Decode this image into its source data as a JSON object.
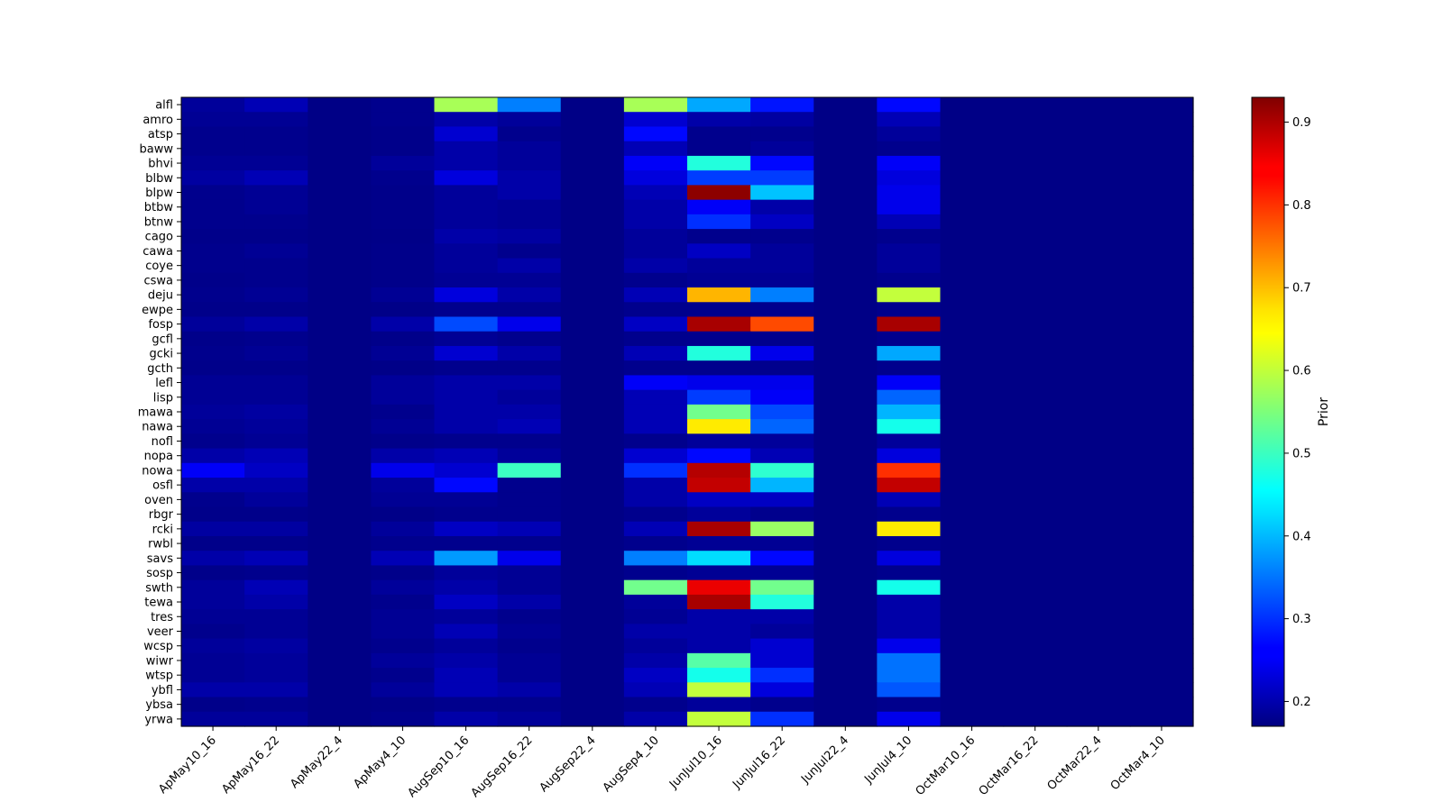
{
  "chart_data": {
    "type": "heatmap",
    "title": "",
    "xlabel": "",
    "ylabel": "",
    "colormap": "jet",
    "colorbar": {
      "label": "Prior",
      "vmin": 0.17,
      "vmax": 0.93,
      "ticks": [
        0.2,
        0.3,
        0.4,
        0.5,
        0.6,
        0.7,
        0.8,
        0.9
      ],
      "tick_labels": [
        "0.2",
        "0.3",
        "0.4",
        "0.5",
        "0.6",
        "0.7",
        "0.8",
        "0.9"
      ]
    },
    "columns": [
      "ApMay10_16",
      "ApMay16_22",
      "ApMay22_4",
      "ApMay4_10",
      "AugSep10_16",
      "AugSep16_22",
      "AugSep22_4",
      "AugSep4_10",
      "JunJul10_16",
      "JunJul16_22",
      "JunJul22_4",
      "JunJul4_10",
      "OctMar10_16",
      "OctMar16_22",
      "OctMar22_4",
      "OctMar4_10"
    ],
    "rows": [
      "alfl",
      "amro",
      "atsp",
      "baww",
      "bhvi",
      "blbw",
      "blpw",
      "btbw",
      "btnw",
      "cago",
      "cawa",
      "coye",
      "cswa",
      "deju",
      "ewpe",
      "fosp",
      "gcfl",
      "gcki",
      "gcth",
      "lefl",
      "lisp",
      "mawa",
      "nawa",
      "nofl",
      "nopa",
      "nowa",
      "osfl",
      "oven",
      "rbgr",
      "rcki",
      "rwbl",
      "savs",
      "sosp",
      "swth",
      "tewa",
      "tres",
      "veer",
      "wcsp",
      "wiwr",
      "wtsp",
      "ybfl",
      "ybsa",
      "yrwa"
    ],
    "values": [
      [
        0.19,
        0.21,
        0.175,
        0.18,
        0.58,
        0.36,
        0.175,
        0.58,
        0.39,
        0.28,
        0.175,
        0.27,
        0.175,
        0.175,
        0.175,
        0.175
      ],
      [
        0.185,
        0.185,
        0.175,
        0.18,
        0.2,
        0.19,
        0.175,
        0.23,
        0.2,
        0.195,
        0.175,
        0.21,
        0.175,
        0.175,
        0.175,
        0.175
      ],
      [
        0.18,
        0.18,
        0.175,
        0.178,
        0.23,
        0.18,
        0.175,
        0.27,
        0.18,
        0.18,
        0.175,
        0.19,
        0.175,
        0.175,
        0.175,
        0.175
      ],
      [
        0.18,
        0.18,
        0.175,
        0.178,
        0.2,
        0.19,
        0.175,
        0.21,
        0.18,
        0.19,
        0.175,
        0.18,
        0.175,
        0.175,
        0.175,
        0.175
      ],
      [
        0.185,
        0.185,
        0.175,
        0.19,
        0.2,
        0.19,
        0.175,
        0.26,
        0.48,
        0.27,
        0.175,
        0.26,
        0.175,
        0.175,
        0.175,
        0.175
      ],
      [
        0.195,
        0.21,
        0.175,
        0.18,
        0.24,
        0.2,
        0.175,
        0.24,
        0.31,
        0.31,
        0.175,
        0.24,
        0.175,
        0.175,
        0.175,
        0.175
      ],
      [
        0.18,
        0.185,
        0.175,
        0.178,
        0.19,
        0.2,
        0.175,
        0.21,
        0.92,
        0.41,
        0.175,
        0.25,
        0.175,
        0.175,
        0.175,
        0.175
      ],
      [
        0.18,
        0.185,
        0.175,
        0.178,
        0.19,
        0.185,
        0.175,
        0.2,
        0.26,
        0.2,
        0.175,
        0.25,
        0.175,
        0.175,
        0.175,
        0.175
      ],
      [
        0.18,
        0.18,
        0.175,
        0.178,
        0.19,
        0.185,
        0.175,
        0.2,
        0.3,
        0.22,
        0.175,
        0.21,
        0.175,
        0.175,
        0.175,
        0.175
      ],
      [
        0.178,
        0.178,
        0.175,
        0.176,
        0.2,
        0.195,
        0.175,
        0.19,
        0.18,
        0.18,
        0.175,
        0.18,
        0.175,
        0.175,
        0.175,
        0.175
      ],
      [
        0.18,
        0.185,
        0.175,
        0.178,
        0.19,
        0.18,
        0.175,
        0.19,
        0.22,
        0.19,
        0.175,
        0.19,
        0.175,
        0.175,
        0.175,
        0.175
      ],
      [
        0.18,
        0.18,
        0.175,
        0.178,
        0.19,
        0.2,
        0.175,
        0.2,
        0.19,
        0.19,
        0.175,
        0.19,
        0.175,
        0.175,
        0.175,
        0.175
      ],
      [
        0.178,
        0.18,
        0.175,
        0.178,
        0.185,
        0.185,
        0.175,
        0.18,
        0.185,
        0.185,
        0.175,
        0.18,
        0.175,
        0.175,
        0.175,
        0.175
      ],
      [
        0.18,
        0.185,
        0.175,
        0.185,
        0.24,
        0.2,
        0.175,
        0.21,
        0.7,
        0.36,
        0.175,
        0.6,
        0.175,
        0.175,
        0.175,
        0.175
      ],
      [
        0.178,
        0.178,
        0.175,
        0.176,
        0.18,
        0.18,
        0.175,
        0.18,
        0.18,
        0.18,
        0.175,
        0.18,
        0.175,
        0.175,
        0.175,
        0.175
      ],
      [
        0.19,
        0.2,
        0.175,
        0.2,
        0.32,
        0.25,
        0.175,
        0.22,
        0.9,
        0.78,
        0.175,
        0.9,
        0.175,
        0.175,
        0.175,
        0.175
      ],
      [
        0.178,
        0.18,
        0.175,
        0.178,
        0.185,
        0.18,
        0.175,
        0.18,
        0.18,
        0.18,
        0.175,
        0.18,
        0.175,
        0.175,
        0.175,
        0.175
      ],
      [
        0.18,
        0.185,
        0.175,
        0.185,
        0.23,
        0.2,
        0.175,
        0.21,
        0.48,
        0.25,
        0.175,
        0.39,
        0.175,
        0.175,
        0.175,
        0.175
      ],
      [
        0.178,
        0.178,
        0.175,
        0.176,
        0.18,
        0.18,
        0.175,
        0.18,
        0.18,
        0.18,
        0.175,
        0.18,
        0.175,
        0.175,
        0.175,
        0.175
      ],
      [
        0.185,
        0.185,
        0.175,
        0.19,
        0.2,
        0.2,
        0.175,
        0.26,
        0.25,
        0.25,
        0.175,
        0.26,
        0.175,
        0.175,
        0.175,
        0.175
      ],
      [
        0.185,
        0.185,
        0.175,
        0.19,
        0.2,
        0.19,
        0.175,
        0.21,
        0.31,
        0.26,
        0.175,
        0.34,
        0.175,
        0.175,
        0.175,
        0.175
      ],
      [
        0.19,
        0.195,
        0.175,
        0.18,
        0.2,
        0.2,
        0.175,
        0.21,
        0.54,
        0.32,
        0.175,
        0.4,
        0.175,
        0.175,
        0.175,
        0.175
      ],
      [
        0.185,
        0.19,
        0.175,
        0.185,
        0.2,
        0.21,
        0.175,
        0.21,
        0.66,
        0.34,
        0.175,
        0.47,
        0.175,
        0.175,
        0.175,
        0.175
      ],
      [
        0.18,
        0.185,
        0.175,
        0.178,
        0.18,
        0.18,
        0.175,
        0.18,
        0.19,
        0.19,
        0.175,
        0.19,
        0.175,
        0.175,
        0.175,
        0.175
      ],
      [
        0.2,
        0.21,
        0.175,
        0.2,
        0.21,
        0.19,
        0.175,
        0.23,
        0.27,
        0.21,
        0.175,
        0.24,
        0.175,
        0.175,
        0.175,
        0.175
      ],
      [
        0.26,
        0.22,
        0.175,
        0.25,
        0.23,
        0.5,
        0.175,
        0.3,
        0.89,
        0.49,
        0.175,
        0.8,
        0.175,
        0.175,
        0.175,
        0.175
      ],
      [
        0.2,
        0.2,
        0.175,
        0.19,
        0.27,
        0.18,
        0.175,
        0.2,
        0.88,
        0.4,
        0.175,
        0.88,
        0.175,
        0.175,
        0.175,
        0.175
      ],
      [
        0.18,
        0.19,
        0.175,
        0.185,
        0.185,
        0.18,
        0.175,
        0.2,
        0.22,
        0.22,
        0.175,
        0.21,
        0.175,
        0.175,
        0.175,
        0.175
      ],
      [
        0.178,
        0.178,
        0.175,
        0.176,
        0.18,
        0.18,
        0.175,
        0.18,
        0.19,
        0.18,
        0.175,
        0.18,
        0.175,
        0.175,
        0.175,
        0.175
      ],
      [
        0.195,
        0.195,
        0.175,
        0.19,
        0.22,
        0.21,
        0.175,
        0.21,
        0.9,
        0.57,
        0.175,
        0.66,
        0.175,
        0.175,
        0.175,
        0.175
      ],
      [
        0.178,
        0.178,
        0.175,
        0.18,
        0.18,
        0.18,
        0.175,
        0.18,
        0.185,
        0.185,
        0.175,
        0.18,
        0.175,
        0.175,
        0.175,
        0.175
      ],
      [
        0.2,
        0.21,
        0.175,
        0.21,
        0.38,
        0.25,
        0.175,
        0.36,
        0.43,
        0.27,
        0.175,
        0.24,
        0.175,
        0.175,
        0.175,
        0.175
      ],
      [
        0.178,
        0.18,
        0.175,
        0.178,
        0.19,
        0.185,
        0.175,
        0.18,
        0.185,
        0.185,
        0.175,
        0.18,
        0.175,
        0.175,
        0.175,
        0.175
      ],
      [
        0.19,
        0.21,
        0.175,
        0.19,
        0.2,
        0.185,
        0.175,
        0.54,
        0.85,
        0.54,
        0.175,
        0.47,
        0.175,
        0.175,
        0.175,
        0.175
      ],
      [
        0.19,
        0.2,
        0.175,
        0.18,
        0.22,
        0.2,
        0.175,
        0.19,
        0.9,
        0.48,
        0.175,
        0.2,
        0.175,
        0.175,
        0.175,
        0.175
      ],
      [
        0.185,
        0.185,
        0.175,
        0.185,
        0.19,
        0.18,
        0.175,
        0.185,
        0.2,
        0.2,
        0.175,
        0.2,
        0.175,
        0.175,
        0.175,
        0.175
      ],
      [
        0.18,
        0.185,
        0.175,
        0.185,
        0.21,
        0.185,
        0.175,
        0.2,
        0.2,
        0.19,
        0.175,
        0.2,
        0.175,
        0.175,
        0.175,
        0.175
      ],
      [
        0.19,
        0.195,
        0.175,
        0.18,
        0.19,
        0.18,
        0.175,
        0.19,
        0.2,
        0.23,
        0.175,
        0.25,
        0.175,
        0.175,
        0.175,
        0.175
      ],
      [
        0.185,
        0.19,
        0.175,
        0.19,
        0.2,
        0.185,
        0.175,
        0.2,
        0.52,
        0.23,
        0.175,
        0.35,
        0.175,
        0.175,
        0.175,
        0.175
      ],
      [
        0.185,
        0.19,
        0.175,
        0.18,
        0.21,
        0.185,
        0.175,
        0.22,
        0.47,
        0.3,
        0.175,
        0.35,
        0.175,
        0.175,
        0.175,
        0.175
      ],
      [
        0.2,
        0.2,
        0.175,
        0.19,
        0.21,
        0.2,
        0.175,
        0.21,
        0.6,
        0.24,
        0.175,
        0.33,
        0.175,
        0.175,
        0.175,
        0.175
      ],
      [
        0.178,
        0.18,
        0.175,
        0.176,
        0.18,
        0.18,
        0.175,
        0.18,
        0.19,
        0.18,
        0.175,
        0.18,
        0.175,
        0.175,
        0.175,
        0.175
      ],
      [
        0.19,
        0.19,
        0.175,
        0.18,
        0.2,
        0.19,
        0.175,
        0.2,
        0.6,
        0.3,
        0.175,
        0.25,
        0.175,
        0.175,
        0.175,
        0.175
      ]
    ],
    "grid": false,
    "legend": "colorbar-right"
  }
}
